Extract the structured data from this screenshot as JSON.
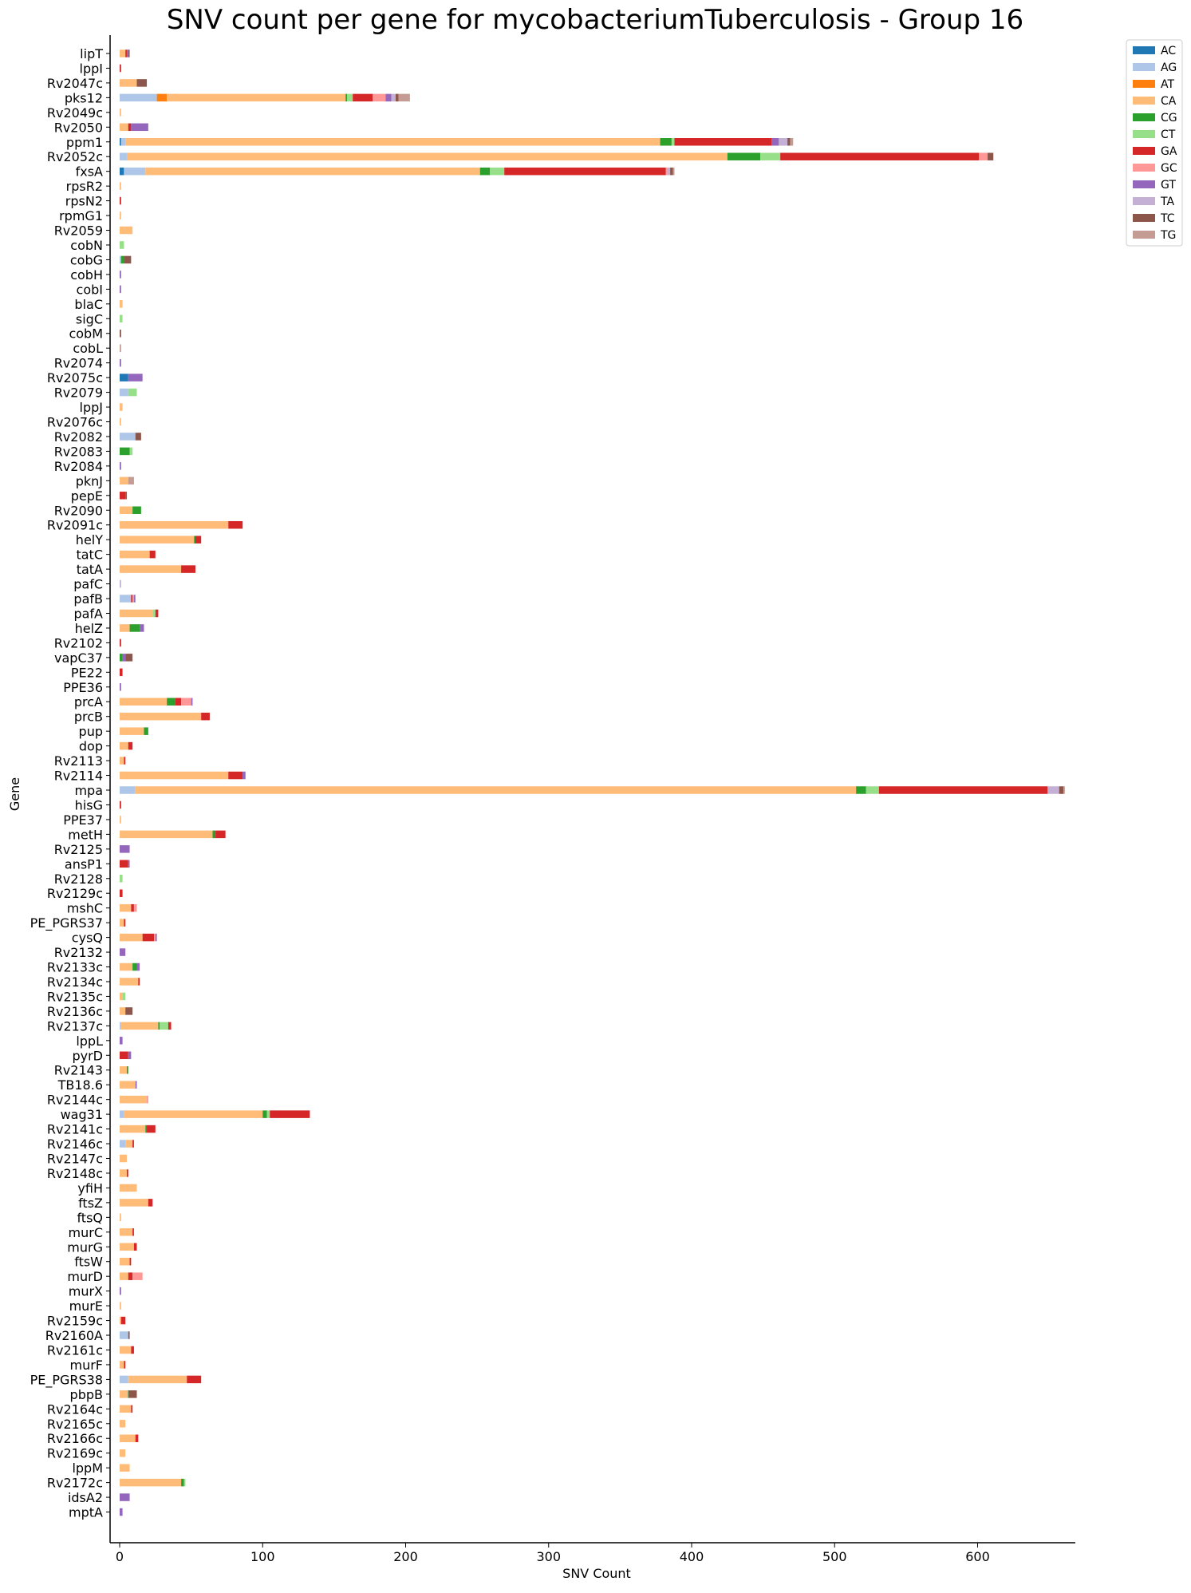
{
  "chart_data": {
    "type": "bar",
    "orientation": "horizontal",
    "stacked": true,
    "title": "SNV count per gene for mycobacteriumTuberculosis - Group 16",
    "xlabel": "SNV Count",
    "ylabel": "Gene",
    "xlim": [
      0,
      668
    ],
    "xticks": [
      0,
      100,
      200,
      300,
      400,
      500,
      600
    ],
    "grid": false,
    "legend_position": "top-right outside",
    "series_names": [
      "AC",
      "AG",
      "AT",
      "CA",
      "CG",
      "CT",
      "GA",
      "GC",
      "GT",
      "TA",
      "TC",
      "TG"
    ],
    "colors": [
      "#1f77b4",
      "#aec7e8",
      "#ff7f0e",
      "#ffbb78",
      "#2ca02c",
      "#98df8a",
      "#d62728",
      "#ff9896",
      "#9467bd",
      "#c5b0d5",
      "#8c564b",
      "#c49c94"
    ],
    "categories": [
      "lipT",
      "lppI",
      "Rv2047c",
      "pks12",
      "Rv2049c",
      "Rv2050",
      "ppm1",
      "Rv2052c",
      "fxsA",
      "rpsR2",
      "rpsN2",
      "rpmG1",
      "Rv2059",
      "cobN",
      "cobG",
      "cobH",
      "cobI",
      "blaC",
      "sigC",
      "cobM",
      "cobL",
      "Rv2074",
      "Rv2075c",
      "Rv2079",
      "lppJ",
      "Rv2076c",
      "Rv2082",
      "Rv2083",
      "Rv2084",
      "pknJ",
      "pepE",
      "Rv2090",
      "Rv2091c",
      "helY",
      "tatC",
      "tatA",
      "pafC",
      "pafB",
      "pafA",
      "helZ",
      "Rv2102",
      "vapC37",
      "PE22",
      "PPE36",
      "prcA",
      "prcB",
      "pup",
      "dop",
      "Rv2113",
      "Rv2114",
      "mpa",
      "hisG",
      "PPE37",
      "metH",
      "Rv2125",
      "ansP1",
      "Rv2128",
      "Rv2129c",
      "mshC",
      "PE_PGRS37",
      "cysQ",
      "Rv2132",
      "Rv2133c",
      "Rv2134c",
      "Rv2135c",
      "Rv2136c",
      "Rv2137c",
      "lppL",
      "pyrD",
      "Rv2143",
      "TB18.6",
      "Rv2144c",
      "wag31",
      "Rv2141c",
      "Rv2146c",
      "Rv2147c",
      "Rv2148c",
      "yfiH",
      "ftsZ",
      "ftsQ",
      "murC",
      "murG",
      "ftsW",
      "murD",
      "murX",
      "murE",
      "Rv2159c",
      "Rv2160A",
      "Rv2161c",
      "murF",
      "PE_PGRS38",
      "pbpB",
      "Rv2164c",
      "Rv2165c",
      "Rv2166c",
      "Rv2169c",
      "lppM",
      "Rv2172c",
      "idsA2",
      "mptA"
    ],
    "segments": [
      [
        [
          "CA",
          4
        ],
        [
          "GA",
          1
        ],
        [
          "GT",
          1
        ],
        [
          "TC",
          1
        ]
      ],
      [
        [
          "GA",
          1
        ]
      ],
      [
        [
          "CA",
          12
        ],
        [
          "TC",
          7
        ]
      ],
      [
        [
          "AG",
          26
        ],
        [
          "AT",
          7
        ],
        [
          "CA",
          125
        ],
        [
          "CG",
          1
        ],
        [
          "CT",
          4
        ],
        [
          "GA",
          14
        ],
        [
          "GC",
          9
        ],
        [
          "GT",
          4
        ],
        [
          "TA",
          3
        ],
        [
          "TC",
          2
        ],
        [
          "TG",
          8
        ]
      ],
      [
        [
          "CA",
          1
        ]
      ],
      [
        [
          "CA",
          6
        ],
        [
          "GA",
          2
        ],
        [
          "GT",
          12
        ]
      ],
      [
        [
          "AC",
          1
        ],
        [
          "AG",
          3
        ],
        [
          "CA",
          374
        ],
        [
          "CG",
          8
        ],
        [
          "CT",
          2
        ],
        [
          "GA",
          68
        ],
        [
          "GT",
          5
        ],
        [
          "TA",
          6
        ],
        [
          "TC",
          2
        ],
        [
          "TG",
          2
        ]
      ],
      [
        [
          "AG",
          5
        ],
        [
          "CA",
          420
        ],
        [
          "CG",
          23
        ],
        [
          "CT",
          14
        ],
        [
          "GA",
          139
        ],
        [
          "GC",
          6
        ],
        [
          "TC",
          4
        ]
      ],
      [
        [
          "AC",
          3
        ],
        [
          "AG",
          15
        ],
        [
          "CA",
          234
        ],
        [
          "CG",
          7
        ],
        [
          "CT",
          10
        ],
        [
          "GA",
          113
        ],
        [
          "GC",
          1
        ],
        [
          "TA",
          2
        ],
        [
          "TC",
          2
        ],
        [
          "TG",
          1
        ]
      ],
      [
        [
          "CA",
          1
        ]
      ],
      [
        [
          "GA",
          1
        ]
      ],
      [
        [
          "CA",
          1
        ]
      ],
      [
        [
          "CA",
          9
        ]
      ],
      [
        [
          "CT",
          3
        ]
      ],
      [
        [
          "AG",
          1
        ],
        [
          "CG",
          2
        ],
        [
          "TC",
          5
        ]
      ],
      [
        [
          "GT",
          1
        ]
      ],
      [
        [
          "GT",
          1
        ]
      ],
      [
        [
          "CA",
          2
        ]
      ],
      [
        [
          "CT",
          2
        ]
      ],
      [
        [
          "TC",
          1
        ]
      ],
      [
        [
          "TG",
          1
        ]
      ],
      [
        [
          "GT",
          1
        ]
      ],
      [
        [
          "AC",
          6
        ],
        [
          "GT",
          10
        ]
      ],
      [
        [
          "AG",
          6
        ],
        [
          "CT",
          6
        ]
      ],
      [
        [
          "CA",
          2
        ]
      ],
      [
        [
          "CA",
          1
        ]
      ],
      [
        [
          "AG",
          11
        ],
        [
          "TC",
          4
        ]
      ],
      [
        [
          "CG",
          7
        ],
        [
          "CT",
          2
        ]
      ],
      [
        [
          "GT",
          1
        ]
      ],
      [
        [
          "CA",
          6
        ],
        [
          "TG",
          4
        ]
      ],
      [
        [
          "GA",
          4
        ],
        [
          "TC",
          1
        ]
      ],
      [
        [
          "CA",
          9
        ],
        [
          "CG",
          6
        ]
      ],
      [
        [
          "CA",
          76
        ],
        [
          "GA",
          10
        ]
      ],
      [
        [
          "CA",
          52
        ],
        [
          "CG",
          1
        ],
        [
          "GA",
          4
        ]
      ],
      [
        [
          "CA",
          21
        ],
        [
          "GA",
          4
        ]
      ],
      [
        [
          "CA",
          43
        ],
        [
          "GA",
          10
        ]
      ],
      [
        [
          "TA",
          1
        ]
      ],
      [
        [
          "AG",
          8
        ],
        [
          "GA",
          1
        ],
        [
          "GC",
          1
        ],
        [
          "GT",
          1
        ]
      ],
      [
        [
          "CA",
          23
        ],
        [
          "CT",
          2
        ],
        [
          "GA",
          2
        ]
      ],
      [
        [
          "CA",
          7
        ],
        [
          "CG",
          7
        ],
        [
          "GT",
          3
        ]
      ],
      [
        [
          "GA",
          1
        ]
      ],
      [
        [
          "CG",
          2
        ],
        [
          "GT",
          2
        ],
        [
          "TC",
          5
        ]
      ],
      [
        [
          "GA",
          2
        ]
      ],
      [
        [
          "GT",
          1
        ]
      ],
      [
        [
          "CA",
          33
        ],
        [
          "CG",
          6
        ],
        [
          "GA",
          4
        ],
        [
          "GC",
          7
        ],
        [
          "GT",
          1
        ]
      ],
      [
        [
          "CA",
          57
        ],
        [
          "GA",
          6
        ]
      ],
      [
        [
          "CA",
          17
        ],
        [
          "CG",
          3
        ]
      ],
      [
        [
          "CA",
          6
        ],
        [
          "GA",
          3
        ]
      ],
      [
        [
          "CA",
          3
        ],
        [
          "GA",
          1
        ]
      ],
      [
        [
          "CA",
          76
        ],
        [
          "GA",
          10
        ],
        [
          "GT",
          2
        ]
      ],
      [
        [
          "AG",
          11
        ],
        [
          "CA",
          504
        ],
        [
          "CG",
          7
        ],
        [
          "CT",
          9
        ],
        [
          "GA",
          118
        ],
        [
          "TA",
          8
        ],
        [
          "TC",
          3
        ],
        [
          "TG",
          1
        ]
      ],
      [
        [
          "GA",
          1
        ]
      ],
      [
        [
          "CA",
          1
        ]
      ],
      [
        [
          "CA",
          65
        ],
        [
          "CG",
          2
        ],
        [
          "GA",
          7
        ]
      ],
      [
        [
          "GT",
          7
        ]
      ],
      [
        [
          "GA",
          6
        ],
        [
          "GT",
          1
        ]
      ],
      [
        [
          "CT",
          2
        ]
      ],
      [
        [
          "GA",
          2
        ]
      ],
      [
        [
          "CA",
          8
        ],
        [
          "GA",
          2
        ],
        [
          "GC",
          2
        ]
      ],
      [
        [
          "CA",
          3
        ],
        [
          "GA",
          1
        ]
      ],
      [
        [
          "CA",
          16
        ],
        [
          "GA",
          8
        ],
        [
          "GC",
          1
        ],
        [
          "GT",
          1
        ]
      ],
      [
        [
          "GT",
          4
        ]
      ],
      [
        [
          "CA",
          9
        ],
        [
          "CG",
          3
        ],
        [
          "GT",
          2
        ]
      ],
      [
        [
          "CA",
          13
        ],
        [
          "GA",
          1
        ]
      ],
      [
        [
          "CA",
          2
        ],
        [
          "CT",
          2
        ]
      ],
      [
        [
          "CA",
          4
        ],
        [
          "TC",
          5
        ]
      ],
      [
        [
          "AG",
          1
        ],
        [
          "CA",
          26
        ],
        [
          "CG",
          1
        ],
        [
          "CT",
          6
        ],
        [
          "GA",
          2
        ]
      ],
      [
        [
          "GT",
          2
        ]
      ],
      [
        [
          "GA",
          6
        ],
        [
          "GT",
          2
        ]
      ],
      [
        [
          "CA",
          5
        ],
        [
          "CG",
          1
        ]
      ],
      [
        [
          "CA",
          11
        ],
        [
          "GT",
          1
        ]
      ],
      [
        [
          "CA",
          19
        ],
        [
          "GC",
          1
        ]
      ],
      [
        [
          "AG",
          3
        ],
        [
          "CA",
          97
        ],
        [
          "CG",
          3
        ],
        [
          "CT",
          2
        ],
        [
          "GA",
          28
        ]
      ],
      [
        [
          "CA",
          18
        ],
        [
          "CG",
          1
        ],
        [
          "GA",
          6
        ]
      ],
      [
        [
          "AG",
          4
        ],
        [
          "CA",
          5
        ],
        [
          "GA",
          1
        ]
      ],
      [
        [
          "CA",
          5
        ]
      ],
      [
        [
          "CA",
          5
        ],
        [
          "GA",
          1
        ]
      ],
      [
        [
          "CA",
          12
        ]
      ],
      [
        [
          "CA",
          20
        ],
        [
          "GA",
          3
        ]
      ],
      [
        [
          "CA",
          1
        ]
      ],
      [
        [
          "CA",
          9
        ],
        [
          "GA",
          1
        ]
      ],
      [
        [
          "CA",
          10
        ],
        [
          "GA",
          2
        ]
      ],
      [
        [
          "CA",
          7
        ],
        [
          "GA",
          1
        ]
      ],
      [
        [
          "CA",
          6
        ],
        [
          "GA",
          3
        ],
        [
          "GC",
          7
        ]
      ],
      [
        [
          "GT",
          1
        ]
      ],
      [
        [
          "CA",
          1
        ]
      ],
      [
        [
          "CA",
          1
        ],
        [
          "GA",
          3
        ]
      ],
      [
        [
          "AG",
          6
        ],
        [
          "TC",
          1
        ]
      ],
      [
        [
          "CA",
          8
        ],
        [
          "GA",
          2
        ]
      ],
      [
        [
          "CA",
          3
        ],
        [
          "GA",
          1
        ]
      ],
      [
        [
          "AG",
          6
        ],
        [
          "CA",
          41
        ],
        [
          "GA",
          10
        ]
      ],
      [
        [
          "CA",
          5
        ],
        [
          "CT",
          1
        ],
        [
          "TC",
          6
        ]
      ],
      [
        [
          "CA",
          8
        ],
        [
          "GA",
          1
        ]
      ],
      [
        [
          "CA",
          4
        ]
      ],
      [
        [
          "CA",
          11
        ],
        [
          "GA",
          2
        ]
      ],
      [
        [
          "CA",
          4
        ]
      ],
      [
        [
          "CA",
          7
        ]
      ],
      [
        [
          "CA",
          43
        ],
        [
          "CG",
          2
        ],
        [
          "CT",
          1
        ]
      ],
      [
        [
          "GT",
          7
        ]
      ],
      [
        [
          "GT",
          2
        ]
      ]
    ]
  }
}
